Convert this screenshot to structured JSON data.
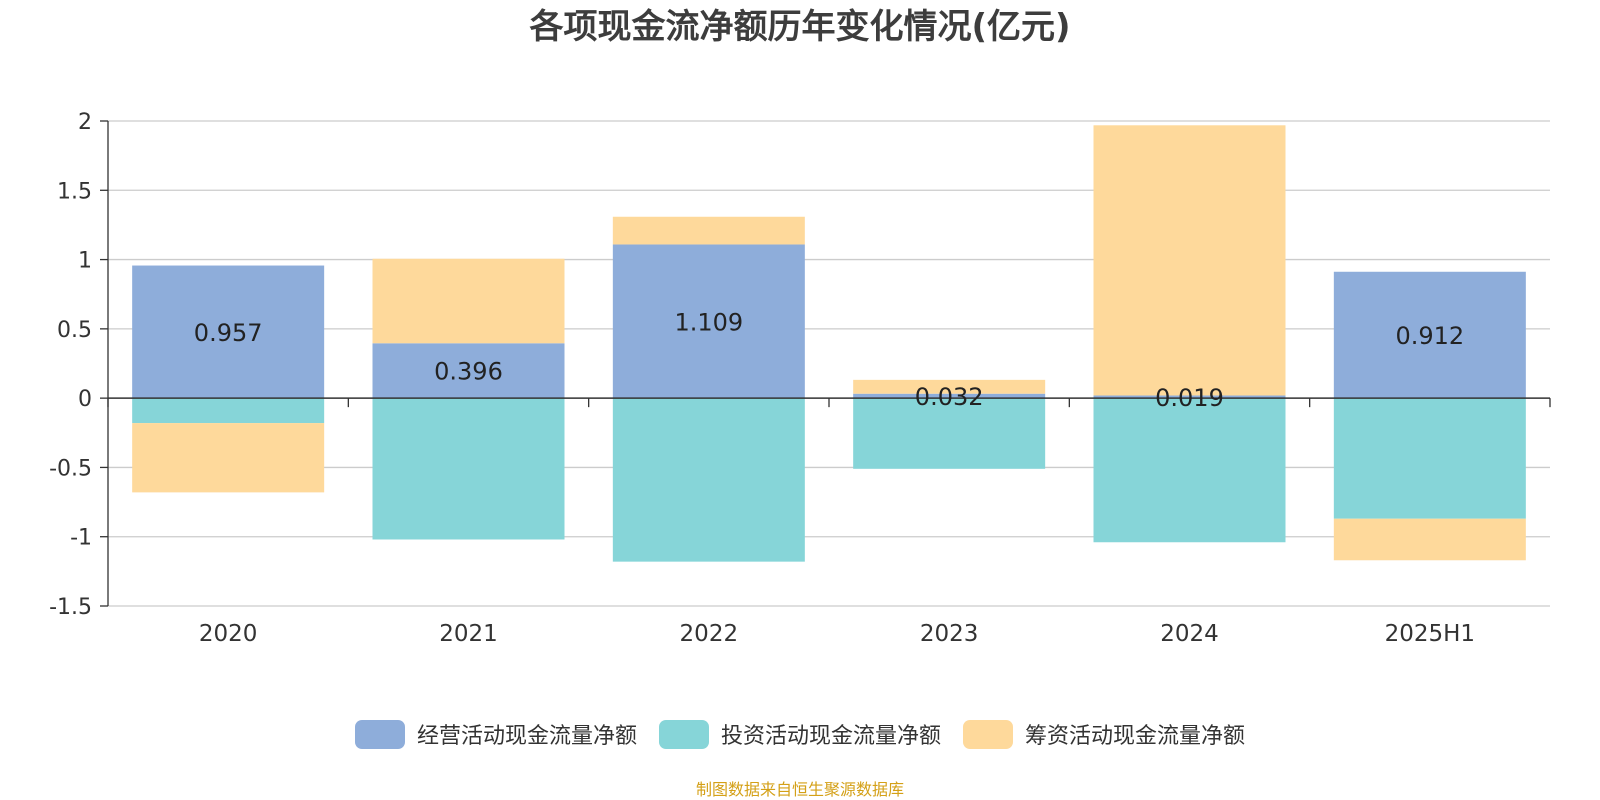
{
  "chart_data": {
    "type": "bar",
    "stacked": true,
    "title": "各项现金流净额历年变化情况(亿元)",
    "categories": [
      "2020",
      "2021",
      "2022",
      "2023",
      "2024",
      "2025H1"
    ],
    "series": [
      {
        "name": "经营活动现金流量净额",
        "color": "#8eadda",
        "values": [
          0.957,
          0.396,
          1.109,
          0.032,
          0.019,
          0.912
        ],
        "labels": [
          "0.957",
          "0.396",
          "1.109",
          "0.032",
          "0.019",
          "0.912"
        ]
      },
      {
        "name": "投资活动现金流量净额",
        "color": "#86d5d8",
        "values": [
          -0.18,
          -1.02,
          -1.18,
          -0.51,
          -1.04,
          -0.87
        ]
      },
      {
        "name": "筹资活动现金流量净额",
        "color": "#fed99b",
        "values": [
          -0.5,
          0.61,
          0.2,
          0.1,
          1.95,
          -0.3
        ]
      }
    ],
    "ylim": [
      -1.5,
      2
    ],
    "yticks": [
      "2",
      "1.5",
      "1",
      "0.5",
      "0",
      "-0.5",
      "-1",
      "-1.5"
    ],
    "grid": true,
    "legend_position": "bottom-center",
    "xlabel": "",
    "ylabel": ""
  },
  "source_note": {
    "text": "制图数据来自恒生聚源数据库",
    "color": "#d4a017"
  }
}
